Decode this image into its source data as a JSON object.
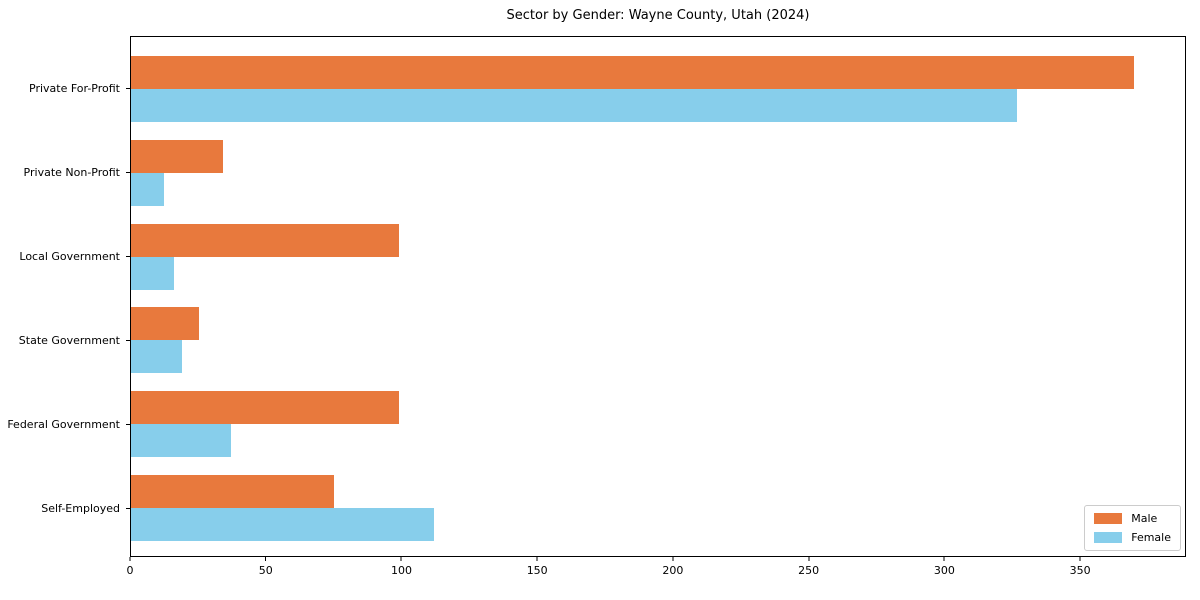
{
  "title": "Sector by Gender: Wayne County, Utah (2024)",
  "chart_data": {
    "type": "bar",
    "orientation": "horizontal",
    "title": "Sector by Gender: Wayne County, Utah (2024)",
    "categories": [
      "Private For-Profit",
      "Private Non-Profit",
      "Local Government",
      "State Government",
      "Federal Government",
      "Self-Employed"
    ],
    "series": [
      {
        "name": "Male",
        "color": "#e8793d",
        "values": [
          370,
          34,
          99,
          25,
          99,
          75
        ]
      },
      {
        "name": "Female",
        "color": "#87ceeb",
        "values": [
          327,
          12,
          16,
          19,
          37,
          112
        ]
      }
    ],
    "xlabel": "",
    "ylabel": "",
    "xlim": [
      0,
      389
    ],
    "xticks": [
      0,
      50,
      100,
      150,
      200,
      250,
      300,
      350
    ],
    "legend_position": "lower right",
    "grid": false,
    "colors": {
      "spine": "#000000",
      "background": "#ffffff",
      "legend_border": "#cccccc",
      "text": "#000000"
    }
  }
}
